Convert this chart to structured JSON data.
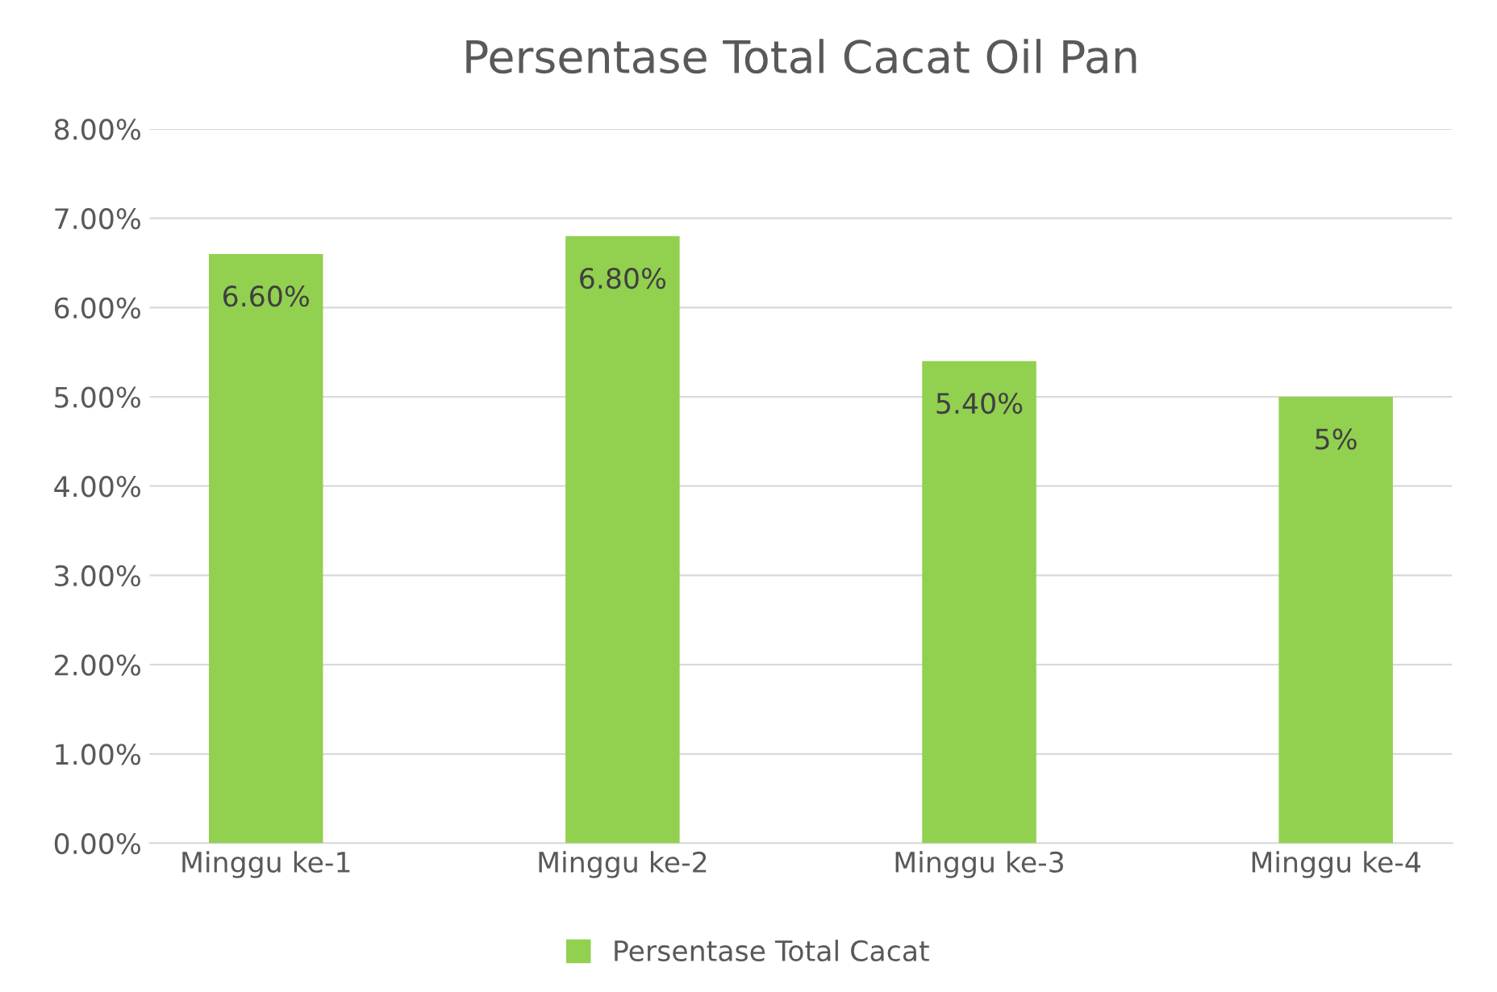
{
  "chart_data": {
    "type": "bar",
    "title": "Persentase Total Cacat Oil Pan",
    "categories": [
      "Minggu ke-1",
      "Minggu ke-2",
      "Minggu ke-3",
      "Minggu ke-4"
    ],
    "series": [
      {
        "name": "Persentase Total Cacat",
        "color": "#92d050",
        "values": [
          6.6,
          6.8,
          5.4,
          5
        ],
        "value_labels": [
          "6.60%",
          "6.80%",
          "5.40%",
          "5%"
        ]
      }
    ],
    "ylim": [
      0,
      8
    ],
    "yticks": [
      {
        "value": 0,
        "label": "0.00%"
      },
      {
        "value": 1,
        "label": "1.00%"
      },
      {
        "value": 2,
        "label": "2.00%"
      },
      {
        "value": 3,
        "label": "3.00%"
      },
      {
        "value": 4,
        "label": "4.00%"
      },
      {
        "value": 5,
        "label": "5.00%"
      },
      {
        "value": 6,
        "label": "6.00%"
      },
      {
        "value": 7,
        "label": "7.00%"
      },
      {
        "value": 8,
        "label": "8.00%"
      }
    ],
    "grid": "y",
    "legend": "bottom"
  }
}
